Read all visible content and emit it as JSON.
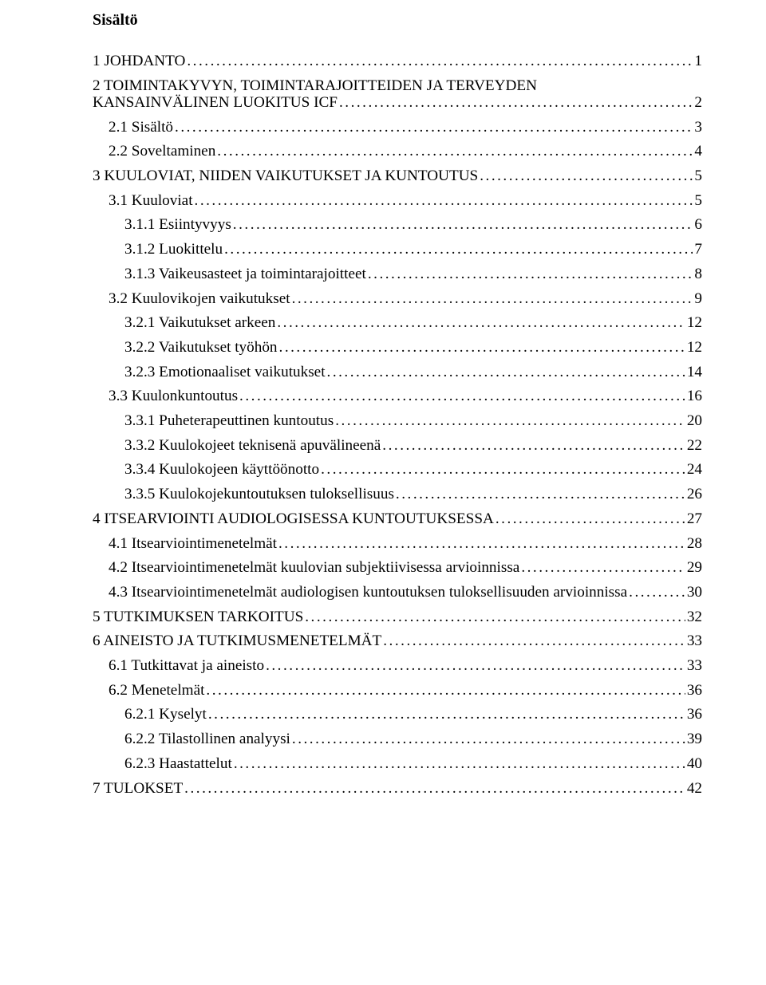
{
  "title": "Sisältö",
  "leader_color": "#000000",
  "text_color": "#000000",
  "background_color": "#ffffff",
  "font_family": "Times New Roman",
  "font_size_title_pt": 15,
  "font_size_body_pt": 14.5,
  "entries": [
    {
      "label": "1 JOHDANTO",
      "page": "1",
      "level": 0
    },
    {
      "label_line1": "2 TOIMINTAKYVYN, TOIMINTARAJOITTEIDEN JA TERVEYDEN",
      "label_line2": "KANSAINVÄLINEN LUOKITUS ICF",
      "page": "2",
      "level": 0
    },
    {
      "label": "2.1 Sisältö",
      "page": "3",
      "level": 1
    },
    {
      "label": "2.2 Soveltaminen",
      "page": "4",
      "level": 1
    },
    {
      "label": "3 KUULOVIAT, NIIDEN VAIKUTUKSET JA KUNTOUTUS",
      "page": "5",
      "level": 0
    },
    {
      "label": "3.1 Kuuloviat",
      "page": "5",
      "level": 1
    },
    {
      "label": "3.1.1 Esiintyvyys",
      "page": "6",
      "level": 2
    },
    {
      "label": "3.1.2 Luokittelu",
      "page": "7",
      "level": 2
    },
    {
      "label": "3.1.3 Vaikeusasteet ja toimintarajoitteet",
      "page": "8",
      "level": 2
    },
    {
      "label": "3.2 Kuulovikojen vaikutukset",
      "page": "9",
      "level": 1
    },
    {
      "label": "3.2.1 Vaikutukset arkeen",
      "page": "12",
      "level": 2
    },
    {
      "label": "3.2.2 Vaikutukset työhön",
      "page": "12",
      "level": 2
    },
    {
      "label": "3.2.3 Emotionaaliset vaikutukset",
      "page": "14",
      "level": 2
    },
    {
      "label": "3.3 Kuulonkuntoutus",
      "page": "16",
      "level": 1
    },
    {
      "label": "3.3.1 Puheterapeuttinen kuntoutus",
      "page": "20",
      "level": 2
    },
    {
      "label": "3.3.2 Kuulokojeet teknisenä apuvälineenä",
      "page": "22",
      "level": 2
    },
    {
      "label": "3.3.4 Kuulokojeen käyttöönotto",
      "page": "24",
      "level": 2
    },
    {
      "label": "3.3.5 Kuulokojekuntoutuksen tuloksellisuus",
      "page": "26",
      "level": 2
    },
    {
      "label": "4 ITSEARVIOINTI AUDIOLOGISESSA KUNTOUTUKSESSA",
      "page": "27",
      "level": 0
    },
    {
      "label": "4.1 Itsearviointimenetelmät",
      "page": "28",
      "level": 1
    },
    {
      "label": "4.2 Itsearviointimenetelmät kuulovian subjektiivisessa arvioinnissa",
      "page": "29",
      "level": 1
    },
    {
      "label": "4.3 Itsearviointimenetelmät audiologisen kuntoutuksen tuloksellisuuden arvioinnissa",
      "page": "30",
      "level": 1
    },
    {
      "label": "5 TUTKIMUKSEN TARKOITUS",
      "page": "32",
      "level": 0
    },
    {
      "label": "6 AINEISTO JA TUTKIMUSMENETELMÄT",
      "page": "33",
      "level": 0
    },
    {
      "label": "6.1 Tutkittavat ja aineisto",
      "page": "33",
      "level": 1
    },
    {
      "label": "6.2 Menetelmät",
      "page": "36",
      "level": 1
    },
    {
      "label": "6.2.1 Kyselyt",
      "page": "36",
      "level": 2
    },
    {
      "label": "6.2.2 Tilastollinen analyysi",
      "page": "39",
      "level": 2
    },
    {
      "label": "6.2.3 Haastattelut",
      "page": "40",
      "level": 2
    },
    {
      "label": "7 TULOKSET",
      "page": "42",
      "level": 0
    }
  ]
}
